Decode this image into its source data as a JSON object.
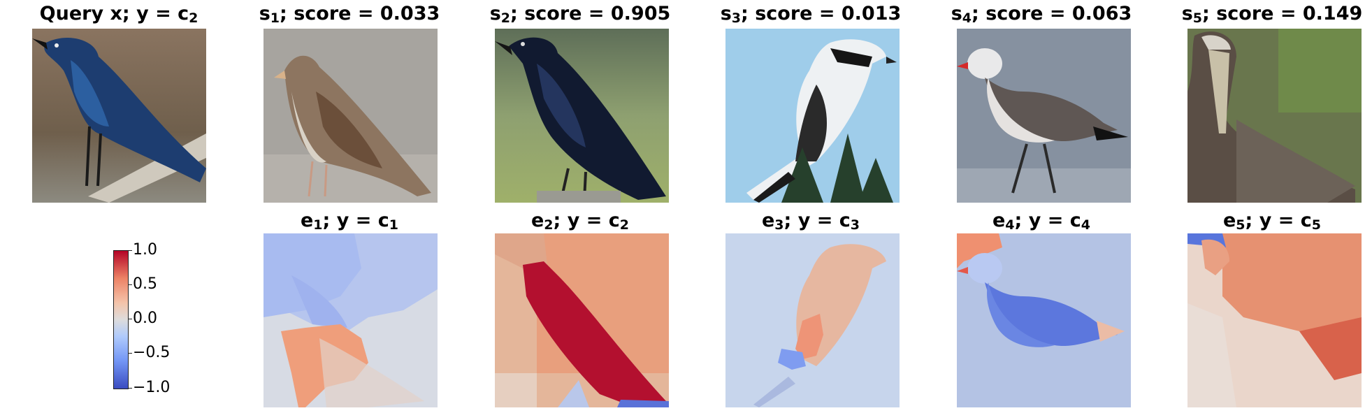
{
  "query": {
    "title_main": "Query x; y = c",
    "title_sub": "2"
  },
  "samples": [
    {
      "title_main": "s",
      "title_sub": "1",
      "title_rest": "; score = 0.033"
    },
    {
      "title_main": "s",
      "title_sub": "2",
      "title_rest": "; score = 0.905"
    },
    {
      "title_main": "s",
      "title_sub": "3",
      "title_rest": "; score = 0.013"
    },
    {
      "title_main": "s",
      "title_sub": "4",
      "title_rest": "; score = 0.063"
    },
    {
      "title_main": "s",
      "title_sub": "5",
      "title_rest": "; score = 0.149"
    }
  ],
  "explanations": [
    {
      "a": "e",
      "a_sub": "1",
      "b": "; y = c",
      "b_sub": "1"
    },
    {
      "a": "e",
      "a_sub": "2",
      "b": "; y = c",
      "b_sub": "2"
    },
    {
      "a": "e",
      "a_sub": "3",
      "b": "; y = c",
      "b_sub": "3"
    },
    {
      "a": "e",
      "a_sub": "4",
      "b": "; y = c",
      "b_sub": "4"
    },
    {
      "a": "e",
      "a_sub": "5",
      "b": "; y = c",
      "b_sub": "5"
    }
  ],
  "colorbar": {
    "ticks": [
      "1.0",
      "0.5",
      "0.0",
      "−0.5",
      "−1.0"
    ],
    "min": -1.0,
    "max": 1.0,
    "colormap": "coolwarm"
  }
}
